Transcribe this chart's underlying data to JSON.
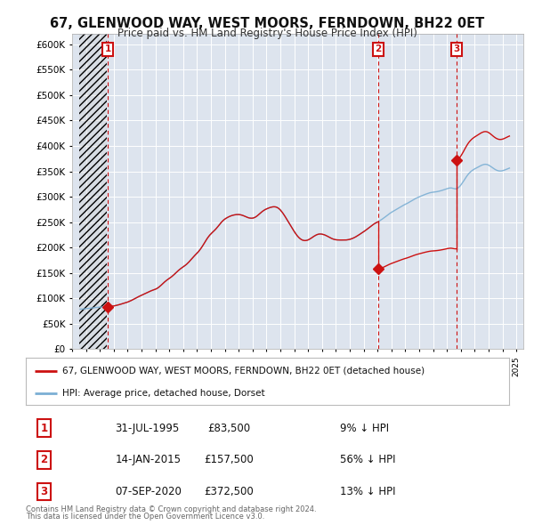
{
  "title": "67, GLENWOOD WAY, WEST MOORS, FERNDOWN, BH22 0ET",
  "subtitle": "Price paid vs. HM Land Registry's House Price Index (HPI)",
  "ylabel_ticks": [
    "£0",
    "£50K",
    "£100K",
    "£150K",
    "£200K",
    "£250K",
    "£300K",
    "£350K",
    "£400K",
    "£450K",
    "£500K",
    "£550K",
    "£600K"
  ],
  "ytick_values": [
    0,
    50000,
    100000,
    150000,
    200000,
    250000,
    300000,
    350000,
    400000,
    450000,
    500000,
    550000,
    600000
  ],
  "ylim": [
    0,
    620000
  ],
  "xlim_start": 1993.5,
  "xlim_end": 2025.5,
  "bg_color": "#dde4ee",
  "grid_color": "#ffffff",
  "hpi_line_color": "#7bafd4",
  "sale_line_color": "#cc1111",
  "transactions": [
    {
      "num": 1,
      "date": "31-JUL-1995",
      "price": 83500,
      "year": 1995.58,
      "pct": "9% ↓ HPI"
    },
    {
      "num": 2,
      "date": "14-JAN-2015",
      "price": 157500,
      "year": 2015.04,
      "pct": "56% ↓ HPI"
    },
    {
      "num": 3,
      "date": "07-SEP-2020",
      "price": 372500,
      "year": 2020.69,
      "pct": "13% ↓ HPI"
    }
  ],
  "legend_house": "67, GLENWOOD WAY, WEST MOORS, FERNDOWN, BH22 0ET (detached house)",
  "legend_hpi": "HPI: Average price, detached house, Dorset",
  "footer1": "Contains HM Land Registry data © Crown copyright and database right 2024.",
  "footer2": "This data is licensed under the Open Government Licence v3.0.",
  "hpi_index_base_year": 1995.58,
  "hpi_index_base_value": 100.0,
  "sale1_price": 83500,
  "sale1_year": 1995.58,
  "sale2_price": 157500,
  "sale2_year": 2015.04,
  "sale3_price": 372500,
  "sale3_year": 2020.69,
  "hpi_data": [
    [
      1993.583,
      57.8
    ],
    [
      1993.667,
      57.9
    ],
    [
      1993.75,
      58.0
    ],
    [
      1993.833,
      58.2
    ],
    [
      1993.917,
      58.4
    ],
    [
      1994.0,
      58.5
    ],
    [
      1994.083,
      58.7
    ],
    [
      1994.167,
      58.9
    ],
    [
      1994.25,
      59.2
    ],
    [
      1994.333,
      59.5
    ],
    [
      1994.417,
      59.7
    ],
    [
      1994.5,
      59.9
    ],
    [
      1994.583,
      60.1
    ],
    [
      1994.667,
      60.3
    ],
    [
      1994.75,
      60.4
    ],
    [
      1994.833,
      60.5
    ],
    [
      1994.917,
      60.6
    ],
    [
      1995.0,
      60.7
    ],
    [
      1995.083,
      60.8
    ],
    [
      1995.167,
      60.9
    ],
    [
      1995.25,
      61.0
    ],
    [
      1995.333,
      61.1
    ],
    [
      1995.417,
      61.2
    ],
    [
      1995.5,
      61.3
    ],
    [
      1995.583,
      61.4
    ],
    [
      1995.667,
      61.6
    ],
    [
      1995.75,
      61.8
    ],
    [
      1995.833,
      62.0
    ],
    [
      1995.917,
      62.2
    ],
    [
      1996.0,
      62.5
    ],
    [
      1996.083,
      62.8
    ],
    [
      1996.167,
      63.2
    ],
    [
      1996.25,
      63.6
    ],
    [
      1996.333,
      64.0
    ],
    [
      1996.417,
      64.5
    ],
    [
      1996.5,
      65.0
    ],
    [
      1996.583,
      65.5
    ],
    [
      1996.667,
      66.0
    ],
    [
      1996.75,
      66.5
    ],
    [
      1996.833,
      67.0
    ],
    [
      1996.917,
      67.5
    ],
    [
      1997.0,
      68.1
    ],
    [
      1997.083,
      68.8
    ],
    [
      1997.167,
      69.5
    ],
    [
      1997.25,
      70.3
    ],
    [
      1997.333,
      71.1
    ],
    [
      1997.417,
      72.0
    ],
    [
      1997.5,
      72.9
    ],
    [
      1997.583,
      73.8
    ],
    [
      1997.667,
      74.7
    ],
    [
      1997.75,
      75.6
    ],
    [
      1997.833,
      76.4
    ],
    [
      1997.917,
      77.2
    ],
    [
      1998.0,
      78.0
    ],
    [
      1998.083,
      78.8
    ],
    [
      1998.167,
      79.6
    ],
    [
      1998.25,
      80.4
    ],
    [
      1998.333,
      81.2
    ],
    [
      1998.417,
      82.0
    ],
    [
      1998.5,
      82.8
    ],
    [
      1998.583,
      83.5
    ],
    [
      1998.667,
      84.2
    ],
    [
      1998.75,
      84.9
    ],
    [
      1998.833,
      85.5
    ],
    [
      1998.917,
      86.1
    ],
    [
      1999.0,
      86.7
    ],
    [
      1999.083,
      87.5
    ],
    [
      1999.167,
      88.5
    ],
    [
      1999.25,
      89.7
    ],
    [
      1999.333,
      91.1
    ],
    [
      1999.417,
      92.6
    ],
    [
      1999.5,
      94.2
    ],
    [
      1999.583,
      95.8
    ],
    [
      1999.667,
      97.3
    ],
    [
      1999.75,
      98.7
    ],
    [
      1999.833,
      100.0
    ],
    [
      1999.917,
      101.2
    ],
    [
      2000.0,
      102.3
    ],
    [
      2000.083,
      103.5
    ],
    [
      2000.167,
      104.8
    ],
    [
      2000.25,
      106.2
    ],
    [
      2000.333,
      107.7
    ],
    [
      2000.417,
      109.3
    ],
    [
      2000.5,
      110.9
    ],
    [
      2000.583,
      112.5
    ],
    [
      2000.667,
      114.0
    ],
    [
      2000.75,
      115.4
    ],
    [
      2000.833,
      116.7
    ],
    [
      2000.917,
      117.9
    ],
    [
      2001.0,
      119.0
    ],
    [
      2001.083,
      120.2
    ],
    [
      2001.167,
      121.5
    ],
    [
      2001.25,
      122.9
    ],
    [
      2001.333,
      124.5
    ],
    [
      2001.417,
      126.2
    ],
    [
      2001.5,
      128.0
    ],
    [
      2001.583,
      129.9
    ],
    [
      2001.667,
      131.8
    ],
    [
      2001.75,
      133.7
    ],
    [
      2001.833,
      135.5
    ],
    [
      2001.917,
      137.2
    ],
    [
      2002.0,
      138.9
    ],
    [
      2002.083,
      140.7
    ],
    [
      2002.167,
      142.7
    ],
    [
      2002.25,
      144.9
    ],
    [
      2002.333,
      147.3
    ],
    [
      2002.417,
      149.9
    ],
    [
      2002.5,
      152.6
    ],
    [
      2002.583,
      155.4
    ],
    [
      2002.667,
      158.1
    ],
    [
      2002.75,
      160.7
    ],
    [
      2002.833,
      163.0
    ],
    [
      2002.917,
      165.1
    ],
    [
      2003.0,
      166.9
    ],
    [
      2003.083,
      168.5
    ],
    [
      2003.167,
      170.1
    ],
    [
      2003.25,
      171.7
    ],
    [
      2003.333,
      173.4
    ],
    [
      2003.417,
      175.3
    ],
    [
      2003.5,
      177.3
    ],
    [
      2003.583,
      179.4
    ],
    [
      2003.667,
      181.5
    ],
    [
      2003.75,
      183.5
    ],
    [
      2003.833,
      185.3
    ],
    [
      2003.917,
      186.9
    ],
    [
      2004.0,
      188.2
    ],
    [
      2004.083,
      189.3
    ],
    [
      2004.167,
      190.3
    ],
    [
      2004.25,
      191.2
    ],
    [
      2004.333,
      192.0
    ],
    [
      2004.417,
      192.7
    ],
    [
      2004.5,
      193.3
    ],
    [
      2004.583,
      193.8
    ],
    [
      2004.667,
      194.2
    ],
    [
      2004.75,
      194.5
    ],
    [
      2004.833,
      194.7
    ],
    [
      2004.917,
      194.8
    ],
    [
      2005.0,
      194.8
    ],
    [
      2005.083,
      194.6
    ],
    [
      2005.167,
      194.3
    ],
    [
      2005.25,
      193.8
    ],
    [
      2005.333,
      193.2
    ],
    [
      2005.417,
      192.5
    ],
    [
      2005.5,
      191.7
    ],
    [
      2005.583,
      191.0
    ],
    [
      2005.667,
      190.4
    ],
    [
      2005.75,
      189.9
    ],
    [
      2005.833,
      189.6
    ],
    [
      2005.917,
      189.5
    ],
    [
      2006.0,
      189.6
    ],
    [
      2006.083,
      190.0
    ],
    [
      2006.167,
      190.7
    ],
    [
      2006.25,
      191.7
    ],
    [
      2006.333,
      192.9
    ],
    [
      2006.417,
      194.3
    ],
    [
      2006.5,
      195.8
    ],
    [
      2006.583,
      197.3
    ],
    [
      2006.667,
      198.7
    ],
    [
      2006.75,
      200.0
    ],
    [
      2006.833,
      201.1
    ],
    [
      2006.917,
      202.1
    ],
    [
      2007.0,
      202.9
    ],
    [
      2007.083,
      203.6
    ],
    [
      2007.167,
      204.3
    ],
    [
      2007.25,
      204.9
    ],
    [
      2007.333,
      205.4
    ],
    [
      2007.417,
      205.8
    ],
    [
      2007.5,
      206.0
    ],
    [
      2007.583,
      206.0
    ],
    [
      2007.667,
      205.8
    ],
    [
      2007.75,
      205.2
    ],
    [
      2007.833,
      204.3
    ],
    [
      2007.917,
      203.0
    ],
    [
      2008.0,
      201.4
    ],
    [
      2008.083,
      199.4
    ],
    [
      2008.167,
      197.2
    ],
    [
      2008.25,
      194.8
    ],
    [
      2008.333,
      192.2
    ],
    [
      2008.417,
      189.5
    ],
    [
      2008.5,
      186.8
    ],
    [
      2008.583,
      184.0
    ],
    [
      2008.667,
      181.2
    ],
    [
      2008.75,
      178.4
    ],
    [
      2008.833,
      175.6
    ],
    [
      2008.917,
      172.9
    ],
    [
      2009.0,
      170.2
    ],
    [
      2009.083,
      167.7
    ],
    [
      2009.167,
      165.4
    ],
    [
      2009.25,
      163.3
    ],
    [
      2009.333,
      161.5
    ],
    [
      2009.417,
      160.0
    ],
    [
      2009.5,
      158.8
    ],
    [
      2009.583,
      157.9
    ],
    [
      2009.667,
      157.4
    ],
    [
      2009.75,
      157.1
    ],
    [
      2009.833,
      157.2
    ],
    [
      2009.917,
      157.5
    ],
    [
      2010.0,
      158.1
    ],
    [
      2010.083,
      158.9
    ],
    [
      2010.167,
      159.9
    ],
    [
      2010.25,
      161.0
    ],
    [
      2010.333,
      162.2
    ],
    [
      2010.417,
      163.3
    ],
    [
      2010.5,
      164.3
    ],
    [
      2010.583,
      165.2
    ],
    [
      2010.667,
      165.9
    ],
    [
      2010.75,
      166.4
    ],
    [
      2010.833,
      166.6
    ],
    [
      2010.917,
      166.6
    ],
    [
      2011.0,
      166.4
    ],
    [
      2011.083,
      166.0
    ],
    [
      2011.167,
      165.5
    ],
    [
      2011.25,
      164.8
    ],
    [
      2011.333,
      164.0
    ],
    [
      2011.417,
      163.1
    ],
    [
      2011.5,
      162.2
    ],
    [
      2011.583,
      161.3
    ],
    [
      2011.667,
      160.5
    ],
    [
      2011.75,
      159.7
    ],
    [
      2011.833,
      159.1
    ],
    [
      2011.917,
      158.6
    ],
    [
      2012.0,
      158.3
    ],
    [
      2012.083,
      158.1
    ],
    [
      2012.167,
      158.0
    ],
    [
      2012.25,
      157.9
    ],
    [
      2012.333,
      157.9
    ],
    [
      2012.417,
      157.9
    ],
    [
      2012.5,
      157.9
    ],
    [
      2012.583,
      157.9
    ],
    [
      2012.667,
      157.9
    ],
    [
      2012.75,
      158.0
    ],
    [
      2012.833,
      158.2
    ],
    [
      2012.917,
      158.5
    ],
    [
      2013.0,
      158.9
    ],
    [
      2013.083,
      159.4
    ],
    [
      2013.167,
      160.0
    ],
    [
      2013.25,
      160.7
    ],
    [
      2013.333,
      161.5
    ],
    [
      2013.417,
      162.4
    ],
    [
      2013.5,
      163.4
    ],
    [
      2013.583,
      164.4
    ],
    [
      2013.667,
      165.5
    ],
    [
      2013.75,
      166.6
    ],
    [
      2013.833,
      167.7
    ],
    [
      2013.917,
      168.8
    ],
    [
      2014.0,
      169.9
    ],
    [
      2014.083,
      171.1
    ],
    [
      2014.167,
      172.3
    ],
    [
      2014.25,
      173.6
    ],
    [
      2014.333,
      174.9
    ],
    [
      2014.417,
      176.2
    ],
    [
      2014.5,
      177.5
    ],
    [
      2014.583,
      178.8
    ],
    [
      2014.667,
      180.0
    ],
    [
      2014.75,
      181.2
    ],
    [
      2014.833,
      182.2
    ],
    [
      2014.917,
      183.2
    ],
    [
      2015.0,
      184.1
    ],
    [
      2015.083,
      185.0
    ],
    [
      2015.167,
      186.0
    ],
    [
      2015.25,
      187.0
    ],
    [
      2015.333,
      188.1
    ],
    [
      2015.417,
      189.3
    ],
    [
      2015.5,
      190.5
    ],
    [
      2015.583,
      191.8
    ],
    [
      2015.667,
      193.1
    ],
    [
      2015.75,
      194.4
    ],
    [
      2015.833,
      195.7
    ],
    [
      2015.917,
      196.9
    ],
    [
      2016.0,
      198.0
    ],
    [
      2016.083,
      199.0
    ],
    [
      2016.167,
      200.0
    ],
    [
      2016.25,
      201.0
    ],
    [
      2016.333,
      202.0
    ],
    [
      2016.417,
      203.0
    ],
    [
      2016.5,
      204.0
    ],
    [
      2016.583,
      205.0
    ],
    [
      2016.667,
      206.0
    ],
    [
      2016.75,
      207.0
    ],
    [
      2016.833,
      207.9
    ],
    [
      2016.917,
      208.8
    ],
    [
      2017.0,
      209.6
    ],
    [
      2017.083,
      210.4
    ],
    [
      2017.167,
      211.3
    ],
    [
      2017.25,
      212.2
    ],
    [
      2017.333,
      213.2
    ],
    [
      2017.417,
      214.2
    ],
    [
      2017.5,
      215.2
    ],
    [
      2017.583,
      216.2
    ],
    [
      2017.667,
      217.2
    ],
    [
      2017.75,
      218.1
    ],
    [
      2017.833,
      218.9
    ],
    [
      2017.917,
      219.7
    ],
    [
      2018.0,
      220.4
    ],
    [
      2018.083,
      221.1
    ],
    [
      2018.167,
      221.8
    ],
    [
      2018.25,
      222.5
    ],
    [
      2018.333,
      223.2
    ],
    [
      2018.417,
      223.9
    ],
    [
      2018.5,
      224.5
    ],
    [
      2018.583,
      225.1
    ],
    [
      2018.667,
      225.7
    ],
    [
      2018.75,
      226.2
    ],
    [
      2018.833,
      226.6
    ],
    [
      2018.917,
      226.9
    ],
    [
      2019.0,
      227.1
    ],
    [
      2019.083,
      227.3
    ],
    [
      2019.167,
      227.5
    ],
    [
      2019.25,
      227.8
    ],
    [
      2019.333,
      228.1
    ],
    [
      2019.417,
      228.5
    ],
    [
      2019.5,
      228.9
    ],
    [
      2019.583,
      229.4
    ],
    [
      2019.667,
      229.9
    ],
    [
      2019.75,
      230.4
    ],
    [
      2019.833,
      231.0
    ],
    [
      2019.917,
      231.6
    ],
    [
      2020.0,
      232.2
    ],
    [
      2020.083,
      232.7
    ],
    [
      2020.167,
      233.1
    ],
    [
      2020.25,
      233.3
    ],
    [
      2020.333,
      233.2
    ],
    [
      2020.417,
      232.8
    ],
    [
      2020.5,
      232.3
    ],
    [
      2020.583,
      232.0
    ],
    [
      2020.667,
      232.1
    ],
    [
      2020.75,
      232.7
    ],
    [
      2020.833,
      233.9
    ],
    [
      2020.917,
      235.5
    ],
    [
      2021.0,
      237.5
    ],
    [
      2021.083,
      239.8
    ],
    [
      2021.167,
      242.3
    ],
    [
      2021.25,
      244.9
    ],
    [
      2021.333,
      247.5
    ],
    [
      2021.417,
      250.0
    ],
    [
      2021.5,
      252.3
    ],
    [
      2021.583,
      254.3
    ],
    [
      2021.667,
      256.0
    ],
    [
      2021.75,
      257.5
    ],
    [
      2021.833,
      258.8
    ],
    [
      2021.917,
      259.9
    ],
    [
      2022.0,
      260.9
    ],
    [
      2022.083,
      261.8
    ],
    [
      2022.167,
      262.7
    ],
    [
      2022.25,
      263.6
    ],
    [
      2022.333,
      264.5
    ],
    [
      2022.417,
      265.4
    ],
    [
      2022.5,
      266.2
    ],
    [
      2022.583,
      266.8
    ],
    [
      2022.667,
      267.3
    ],
    [
      2022.75,
      267.5
    ],
    [
      2022.833,
      267.4
    ],
    [
      2022.917,
      267.0
    ],
    [
      2023.0,
      266.3
    ],
    [
      2023.083,
      265.3
    ],
    [
      2023.167,
      264.2
    ],
    [
      2023.25,
      263.0
    ],
    [
      2023.333,
      261.8
    ],
    [
      2023.417,
      260.7
    ],
    [
      2023.5,
      259.7
    ],
    [
      2023.583,
      258.9
    ],
    [
      2023.667,
      258.3
    ],
    [
      2023.75,
      257.9
    ],
    [
      2023.833,
      257.8
    ],
    [
      2023.917,
      257.9
    ],
    [
      2024.0,
      258.2
    ],
    [
      2024.083,
      258.7
    ],
    [
      2024.167,
      259.3
    ],
    [
      2024.25,
      260.0
    ],
    [
      2024.333,
      260.7
    ],
    [
      2024.417,
      261.4
    ],
    [
      2024.5,
      262.0
    ]
  ]
}
